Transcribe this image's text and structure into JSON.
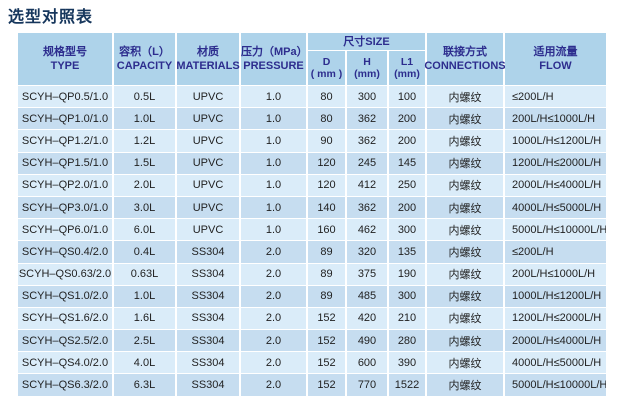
{
  "page": {
    "title": "选型对照表"
  },
  "colors": {
    "header_bg": "#aed3ea",
    "row_light": "#daecf9",
    "row_dark": "#c6ddf0",
    "header_text": "#2d2d8e",
    "title_text": "#16365c",
    "body_text": "#1f1f1f"
  },
  "table": {
    "header": {
      "type_zh": "规格型号",
      "type_en": "TYPE",
      "capacity_zh": "容积（L）",
      "capacity_en": "CAPACITY",
      "materials_zh": "材质",
      "materials_en": "MATERIALS",
      "pressure_zh": "压力（MPa）",
      "pressure_en": "PRESSURE",
      "size_zh": "尺寸SIZE",
      "size_d_1": "D",
      "size_d_2": "( mm )",
      "size_h_1": "H",
      "size_h_2": "(mm)",
      "size_l1_1": "L1",
      "size_l1_2": "(mm)",
      "connections_zh": "联接方式",
      "connections_en": "CONNECTIONS",
      "flow_zh": "适用流量",
      "flow_en": "FLOW"
    },
    "rows": [
      {
        "type": "SCYH–QP0.5/1.0",
        "capacity": "0.5L",
        "materials": "UPVC",
        "pressure": "1.0",
        "d": "80",
        "h": "300",
        "l1": "100",
        "connections": "内螺纹",
        "flow": "≤200L/H"
      },
      {
        "type": "SCYH–QP1.0/1.0",
        "capacity": "1.0L",
        "materials": "UPVC",
        "pressure": "1.0",
        "d": "80",
        "h": "362",
        "l1": "200",
        "connections": "内螺纹",
        "flow": "200L/H≤1000L/H"
      },
      {
        "type": "SCYH–QP1.2/1.0",
        "capacity": "1.2L",
        "materials": "UPVC",
        "pressure": "1.0",
        "d": "90",
        "h": "362",
        "l1": "200",
        "connections": "内螺纹",
        "flow": "1000L/H≤1200L/H"
      },
      {
        "type": "SCYH–QP1.5/1.0",
        "capacity": "1.5L",
        "materials": "UPVC",
        "pressure": "1.0",
        "d": "120",
        "h": "245",
        "l1": "145",
        "connections": "内螺纹",
        "flow": "1200L/H≤2000L/H"
      },
      {
        "type": "SCYH–QP2.0/1.0",
        "capacity": "2.0L",
        "materials": "UPVC",
        "pressure": "1.0",
        "d": "120",
        "h": "412",
        "l1": "250",
        "connections": "内螺纹",
        "flow": "2000L/H≤4000L/H"
      },
      {
        "type": "SCYH–QP3.0/1.0",
        "capacity": "3.0L",
        "materials": "UPVC",
        "pressure": "1.0",
        "d": "140",
        "h": "362",
        "l1": "200",
        "connections": "内螺纹",
        "flow": "4000L/H≤5000L/H"
      },
      {
        "type": "SCYH–QP6.0/1.0",
        "capacity": "6.0L",
        "materials": "UPVC",
        "pressure": "1.0",
        "d": "160",
        "h": "462",
        "l1": "300",
        "connections": "内螺纹",
        "flow": "5000L/H≤10000L/H"
      },
      {
        "type": "SCYH–QS0.4/2.0",
        "capacity": "0.4L",
        "materials": "SS304",
        "pressure": "2.0",
        "d": "89",
        "h": "320",
        "l1": "135",
        "connections": "内螺纹",
        "flow": "≤200L/H"
      },
      {
        "type": "SCYH–QS0.63/2.0",
        "capacity": "0.63L",
        "materials": "SS304",
        "pressure": "2.0",
        "d": "89",
        "h": "375",
        "l1": "190",
        "connections": "内螺纹",
        "flow": "200L/H≤1000L/H"
      },
      {
        "type": "SCYH–QS1.0/2.0",
        "capacity": "1.0L",
        "materials": "SS304",
        "pressure": "2.0",
        "d": "89",
        "h": "485",
        "l1": "300",
        "connections": "内螺纹",
        "flow": "1000L/H≤1200L/H"
      },
      {
        "type": "SCYH–QS1.6/2.0",
        "capacity": "1.6L",
        "materials": "SS304",
        "pressure": "2.0",
        "d": "152",
        "h": "420",
        "l1": "210",
        "connections": "内螺纹",
        "flow": "1200L/H≤2000L/H"
      },
      {
        "type": "SCYH–QS2.5/2.0",
        "capacity": "2.5L",
        "materials": "SS304",
        "pressure": "2.0",
        "d": "152",
        "h": "490",
        "l1": "280",
        "connections": "内螺纹",
        "flow": "2000L/H≤4000L/H"
      },
      {
        "type": "SCYH–QS4.0/2.0",
        "capacity": "4.0L",
        "materials": "SS304",
        "pressure": "2.0",
        "d": "152",
        "h": "600",
        "l1": "390",
        "connections": "内螺纹",
        "flow": "4000L/H≤5000L/H"
      },
      {
        "type": "SCYH–QS6.3/2.0",
        "capacity": "6.3L",
        "materials": "SS304",
        "pressure": "2.0",
        "d": "152",
        "h": "770",
        "l1": "1522",
        "connections": "内螺纹",
        "flow": "5000L/H≤10000L/H"
      }
    ]
  }
}
